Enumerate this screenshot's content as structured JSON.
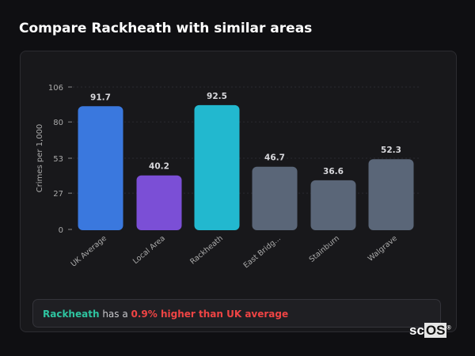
{
  "title": "Compare Rackheath with similar areas",
  "summary": {
    "place": "Rackheath",
    "middle": " has a ",
    "diff": "0.9% higher than UK average"
  },
  "logo": {
    "text_a": "sc",
    "text_b": "OS",
    "mark": "®"
  },
  "chart_data": {
    "type": "bar",
    "categories": [
      "UK Average",
      "Local Area",
      "Rackheath",
      "East Bridg...",
      "Stainburn",
      "Walgrave"
    ],
    "values": [
      91.7,
      40.2,
      92.5,
      46.7,
      36.6,
      52.3
    ],
    "colors": [
      "#3a78de",
      "#7b4fd6",
      "#22b8cf",
      "#5a6678",
      "#5a6678",
      "#5a6678"
    ],
    "ylabel": "Crimes per 1,000",
    "yticks": [
      0,
      27,
      53,
      80,
      106
    ],
    "ylim": [
      0,
      106
    ],
    "grid": true
  }
}
